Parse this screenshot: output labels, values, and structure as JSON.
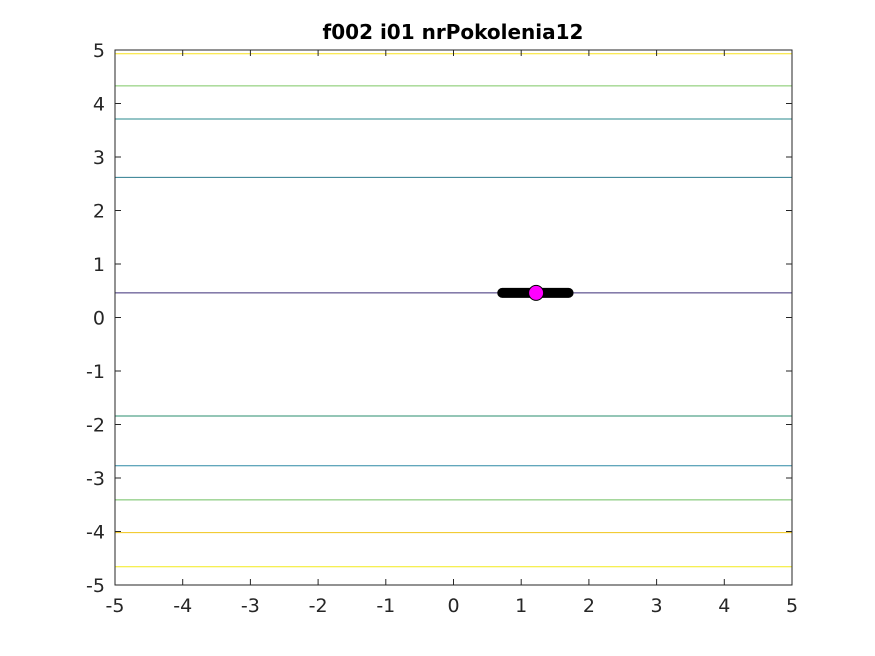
{
  "chart_data": {
    "type": "contour",
    "title": "f002 i01 nrPokolenia12",
    "xlabel": "",
    "ylabel": "",
    "xlim": [
      -5,
      5
    ],
    "ylim": [
      -5,
      5
    ],
    "xticks": [
      -5,
      -4,
      -3,
      -2,
      -1,
      0,
      1,
      2,
      3,
      4,
      5
    ],
    "yticks": [
      -5,
      -4,
      -3,
      -2,
      -1,
      0,
      1,
      2,
      3,
      4,
      5
    ],
    "grid": false,
    "contour_levels": [
      {
        "y": 4.93,
        "color": "#f9e21e"
      },
      {
        "y": 4.33,
        "color": "#7dc865"
      },
      {
        "y": 3.71,
        "color": "#2a8a8c"
      },
      {
        "y": 2.62,
        "color": "#2d7b8e"
      },
      {
        "y": 0.46,
        "color": "#3b2d78"
      },
      {
        "y": -1.84,
        "color": "#2a8d6c"
      },
      {
        "y": -2.77,
        "color": "#2f8aa6"
      },
      {
        "y": -3.41,
        "color": "#6fbf62"
      },
      {
        "y": -4.02,
        "color": "#f0c419"
      },
      {
        "y": -4.66,
        "color": "#f3ea1c"
      }
    ],
    "population": {
      "color": "#000000",
      "x_min": 0.72,
      "x_max": 1.7,
      "y": 0.46
    },
    "best_point": {
      "x": 1.22,
      "y": 0.46,
      "color": "#ff00ff"
    }
  }
}
